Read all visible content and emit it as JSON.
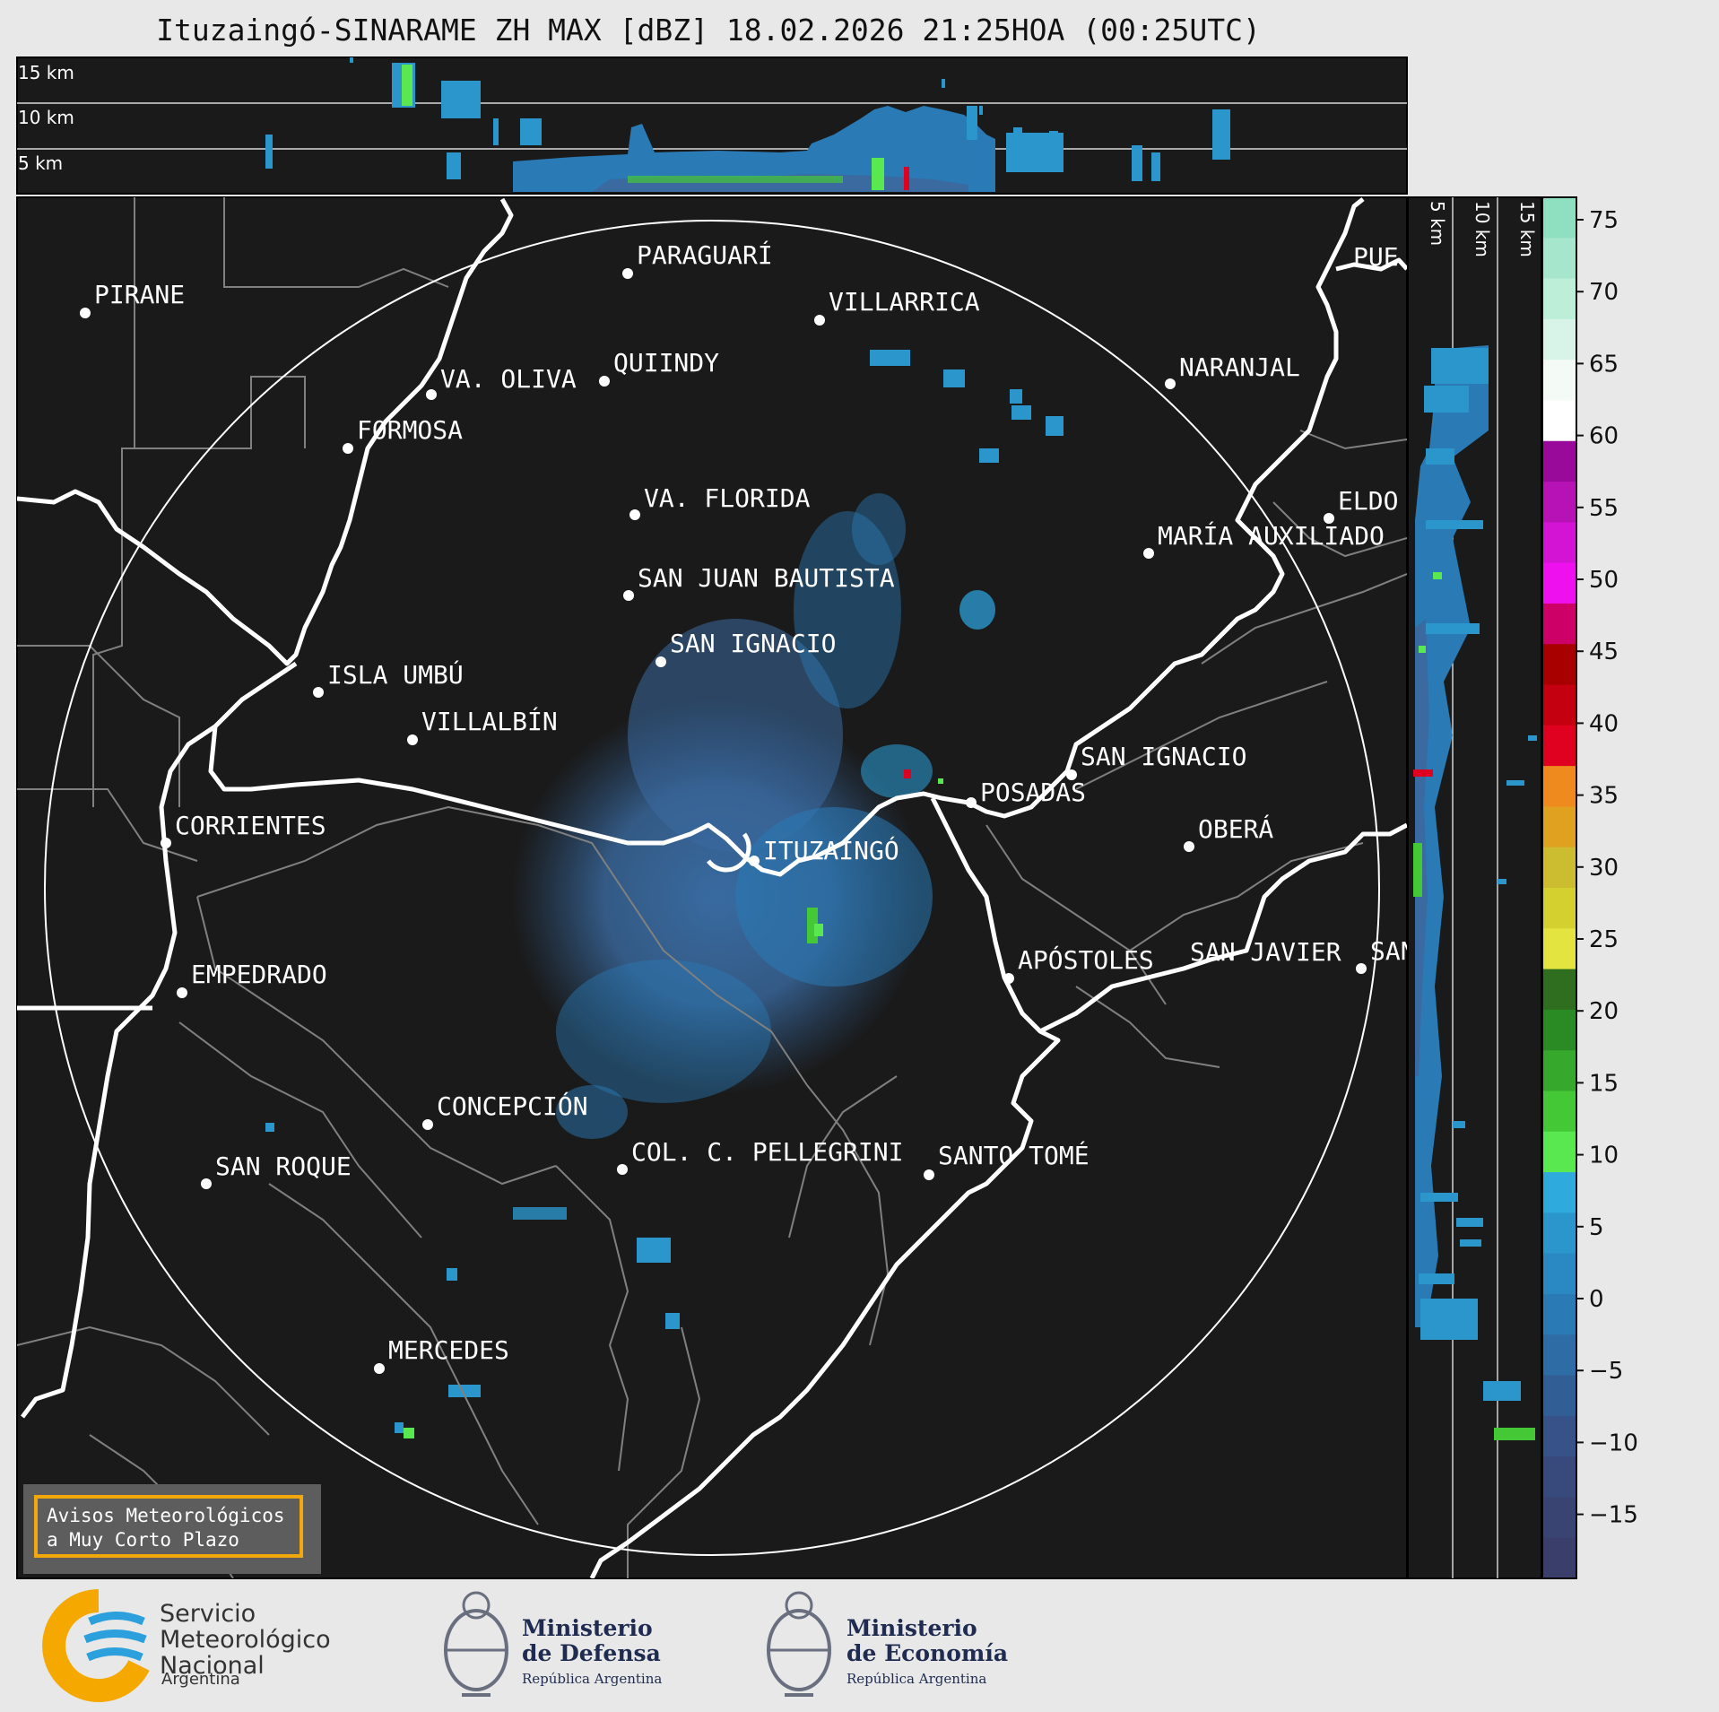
{
  "title": "Ituzaingó-SINARAME ZH MAX [dBZ] 18.02.2026 21:25HOA (00:25UTC)",
  "profile_labels_top": [
    "15 km",
    "10 km",
    "5 km"
  ],
  "profile_labels_right": [
    "5 km",
    "10 km",
    "15 km"
  ],
  "colorbar": {
    "ticks": [
      "75",
      "70",
      "65",
      "60",
      "55",
      "50",
      "45",
      "40",
      "35",
      "30",
      "25",
      "20",
      "15",
      "10",
      "5",
      "0",
      "−5",
      "−10",
      "−15"
    ],
    "colors": [
      "#8fe0c0",
      "#a6e6cc",
      "#bdeed8",
      "#d8f4e8",
      "#f4fbf6",
      "#ffffff",
      "#9a0a9a",
      "#b612b6",
      "#d414d4",
      "#ee10ee",
      "#cc0066",
      "#a80000",
      "#c40010",
      "#e00020",
      "#ee8a1e",
      "#e0a020",
      "#ccbc30",
      "#d4d030",
      "#e4e440",
      "#2e6e1e",
      "#2a8a24",
      "#36a82c",
      "#44c836",
      "#5ae850",
      "#2eaadd",
      "#2a96cc",
      "#2a88c2",
      "#2a7ab6",
      "#2e6ca6",
      "#325e96",
      "#365288",
      "#384a7c",
      "#3a4472",
      "#3a3e6a"
    ]
  },
  "cities": [
    {
      "name": "PIRANE"
    },
    {
      "name": "PARAGUARÍ"
    },
    {
      "name": "VILLARRICA"
    },
    {
      "name": "QUIINDY"
    },
    {
      "name": "VA. OLIVA"
    },
    {
      "name": "FORMOSA"
    },
    {
      "name": "NARANJAL"
    },
    {
      "name": "PUE"
    },
    {
      "name": "VA. FLORIDA"
    },
    {
      "name": "ELDO"
    },
    {
      "name": "MARÍA AUXILIADO"
    },
    {
      "name": "SAN JUAN BAUTISTA"
    },
    {
      "name": "SAN IGNACIO"
    },
    {
      "name": "ISLA UMBÚ"
    },
    {
      "name": "VILLALBÍN"
    },
    {
      "name": "SAN IGNACIO"
    },
    {
      "name": "POSADAS"
    },
    {
      "name": "CORRIENTES"
    },
    {
      "name": "ITUZAINGÓ"
    },
    {
      "name": "OBERÁ"
    },
    {
      "name": "EMPEDRADO"
    },
    {
      "name": "APÓSTOLES"
    },
    {
      "name": "SAN JAVIER"
    },
    {
      "name": "SAN"
    },
    {
      "name": "CONCEPCIÓN"
    },
    {
      "name": "COL. C. PELLEGRINI"
    },
    {
      "name": "SANTO TOMÉ"
    },
    {
      "name": "SAN ROQUE"
    },
    {
      "name": "MERCEDES"
    }
  ],
  "warning": {
    "line1": "Avisos Meteorológicos",
    "line2": "a Muy Corto Plazo"
  },
  "logos": {
    "smn_line1": "Servicio",
    "smn_line2": "Meteorológico",
    "smn_line3": "Nacional",
    "smn_sub": "Argentina",
    "defensa_line1": "Ministerio",
    "defensa_line2": "de Defensa",
    "defensa_sub": "República Argentina",
    "economia_line1": "Ministerio",
    "economia_line2": "de Economía",
    "economia_sub": "República Argentina"
  },
  "colors": {
    "background": "#1a1a1a",
    "page": "#e8e8e8",
    "boundary": "#808080",
    "river": "#ffffff"
  }
}
